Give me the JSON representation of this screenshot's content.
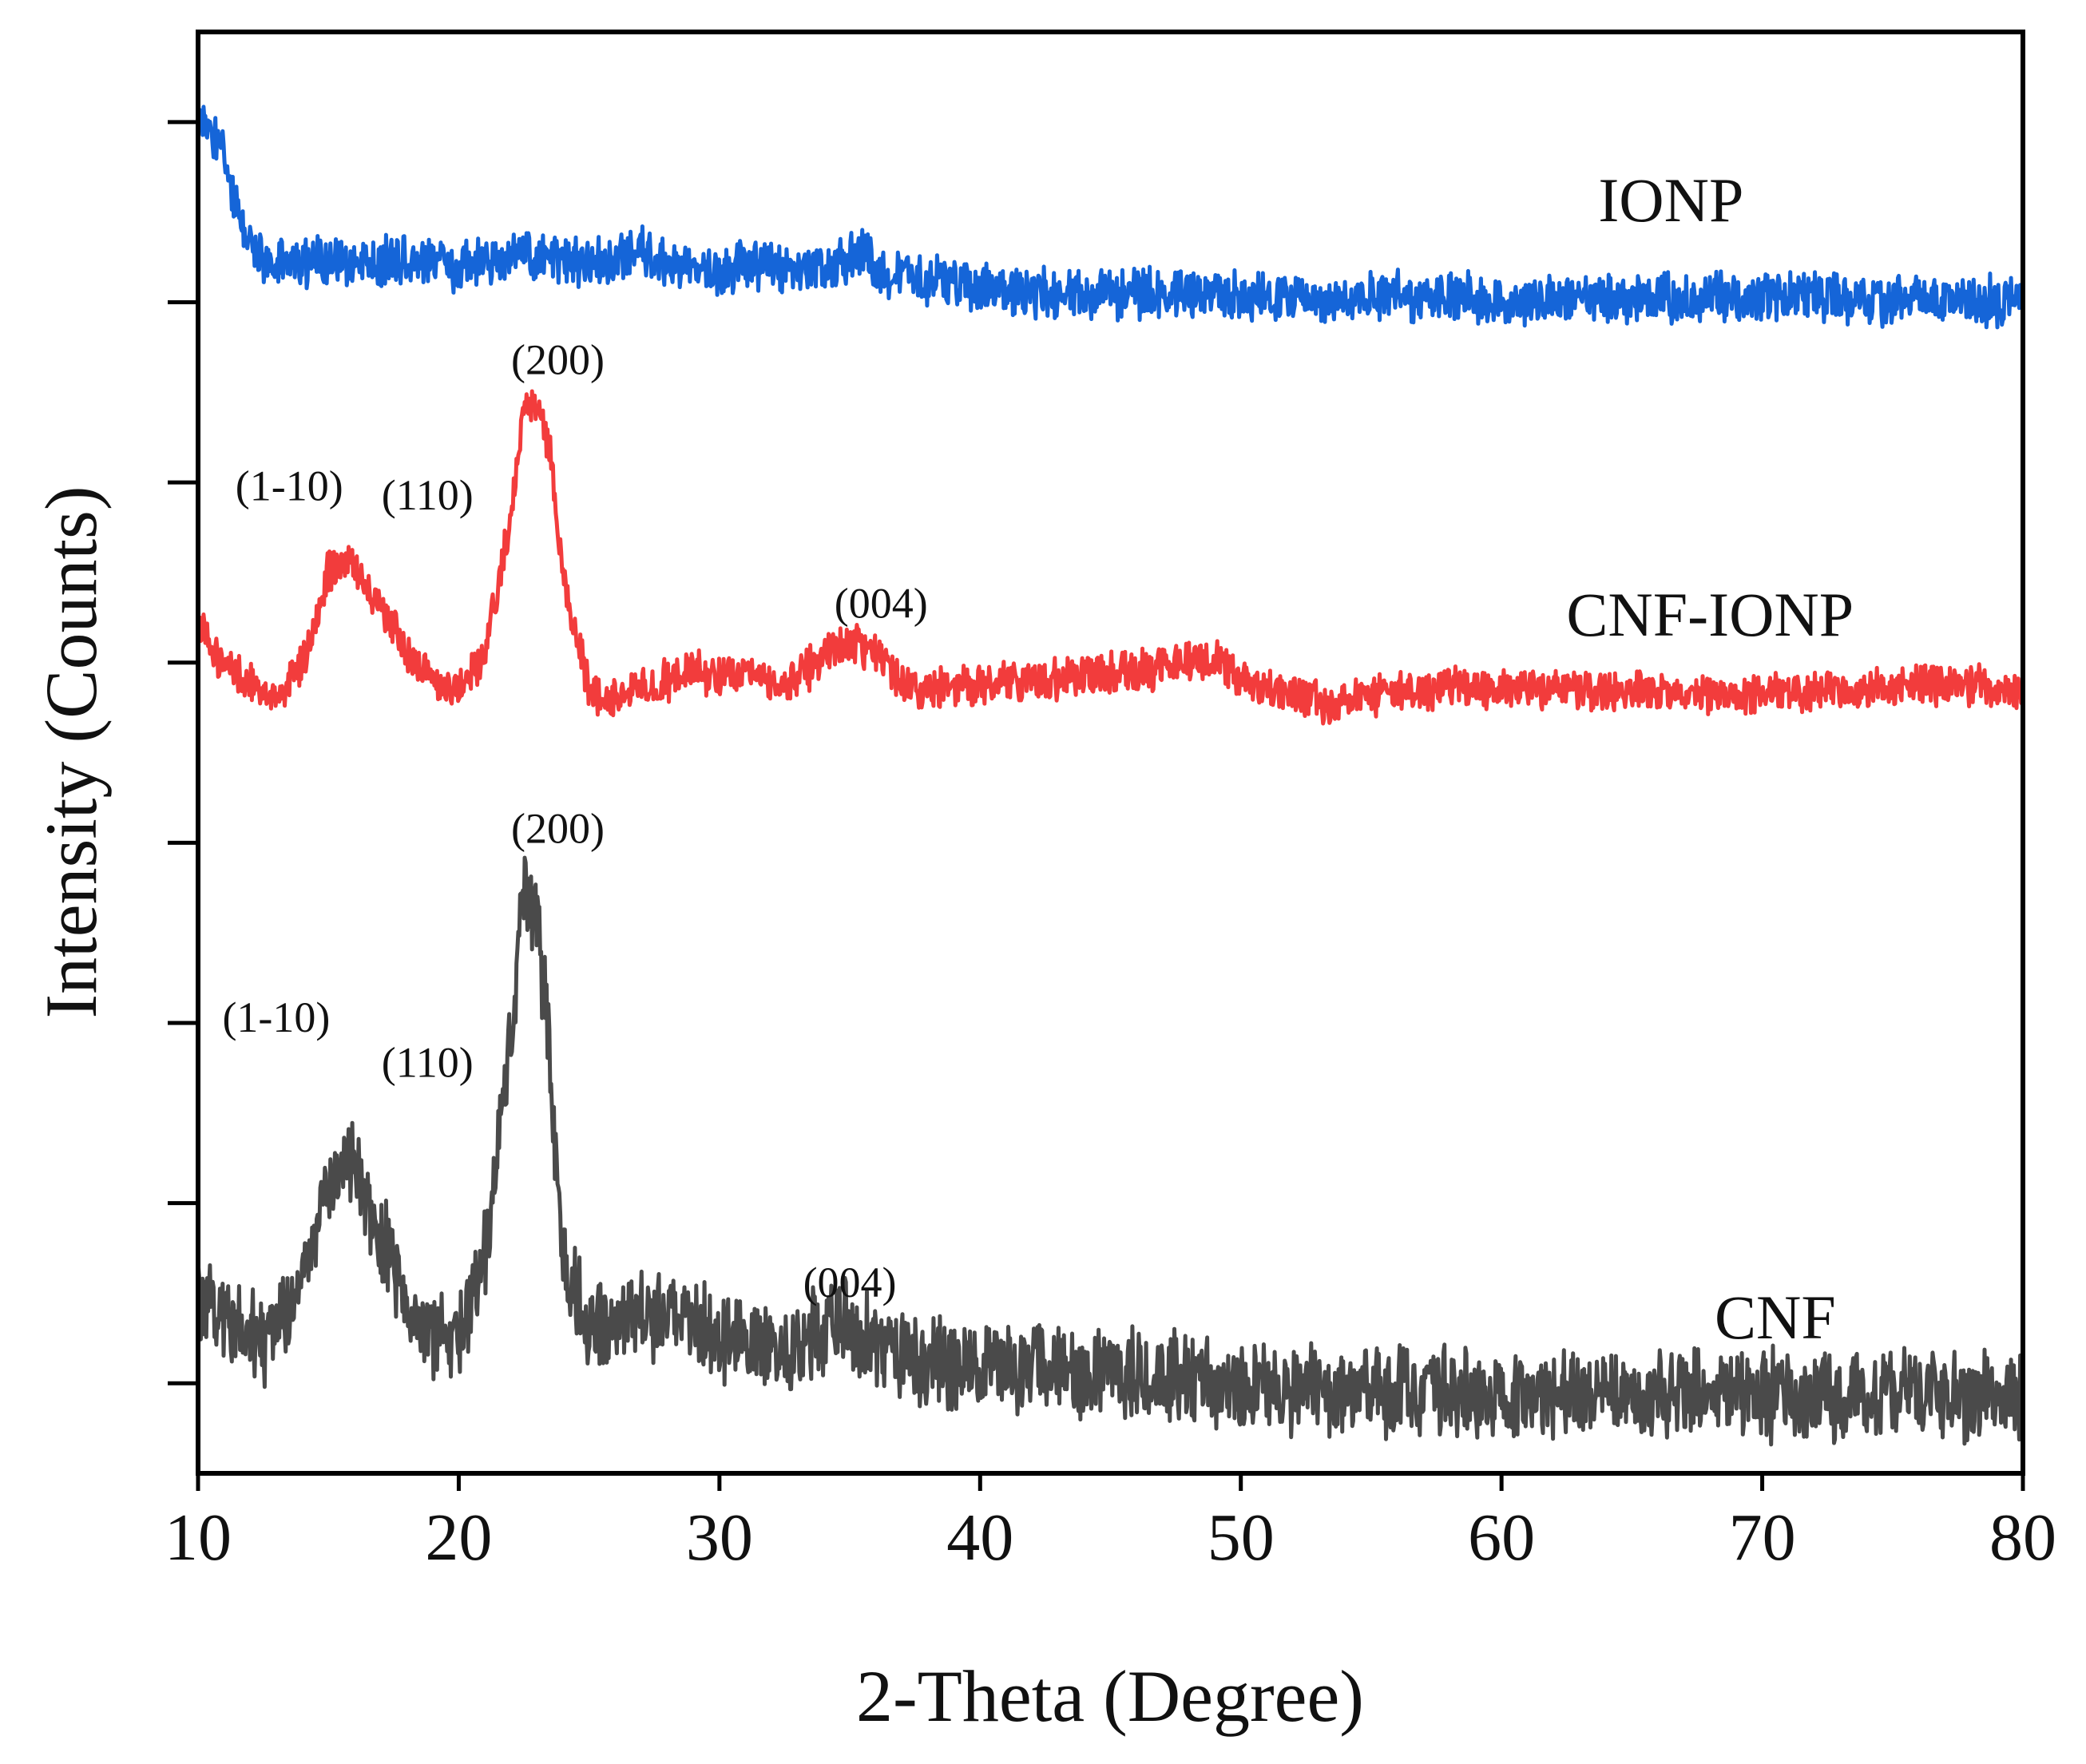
{
  "chart_data": {
    "type": "line",
    "title": "",
    "xlabel": "2-Theta (Degree)",
    "ylabel": "Intensity (Counts)",
    "xlim": [
      10,
      80
    ],
    "ylim": [
      0,
      8
    ],
    "x_ticks": [
      10,
      20,
      30,
      40,
      50,
      60,
      70,
      80
    ],
    "x_tick_labels": [
      "10",
      "20",
      "30",
      "40",
      "50",
      "60",
      "70",
      "80"
    ],
    "y_ticks": [
      0.5,
      1.5,
      2.5,
      3.5,
      4.5,
      5.5,
      6.5,
      7.5
    ],
    "y_tick_labels_shown": false,
    "grid": false,
    "legend": "none (series labelled directly)",
    "series": [
      {
        "name": "IONP",
        "color": "#1565d8",
        "noise": 0.12,
        "x": [
          10,
          10.5,
          11,
          11.5,
          12,
          12.5,
          13,
          14,
          15,
          16,
          17,
          18,
          19,
          20,
          21,
          22,
          22.6,
          23,
          24,
          25,
          26,
          27,
          28,
          29,
          30,
          31,
          32,
          33,
          34,
          35,
          35.3,
          36,
          37,
          38,
          40,
          42,
          44,
          46,
          48,
          50,
          52,
          54,
          56,
          58,
          60,
          62,
          64,
          66,
          68,
          70,
          72,
          74,
          76,
          78,
          80
        ],
        "y": [
          7.55,
          7.45,
          7.3,
          7.0,
          6.82,
          6.72,
          6.72,
          6.72,
          6.74,
          6.72,
          6.72,
          6.74,
          6.72,
          6.7,
          6.72,
          6.75,
          6.78,
          6.74,
          6.72,
          6.72,
          6.74,
          6.78,
          6.72,
          6.7,
          6.66,
          6.7,
          6.68,
          6.66,
          6.68,
          6.74,
          6.82,
          6.68,
          6.66,
          6.62,
          6.58,
          6.55,
          6.55,
          6.55,
          6.54,
          6.53,
          6.53,
          6.53,
          6.53,
          6.52,
          6.52,
          6.52,
          6.52,
          6.53,
          6.52,
          6.52,
          6.53,
          6.51,
          6.51,
          6.51,
          6.51
        ]
      },
      {
        "name": "CNF-IONP",
        "color": "#f23c3c",
        "noise": 0.1,
        "x": [
          10,
          11,
          12,
          13,
          14,
          15,
          15.5,
          16,
          17,
          18,
          19,
          20,
          21,
          22,
          22.5,
          23,
          23.5,
          24,
          25,
          26,
          27,
          28,
          29,
          30,
          31,
          32,
          33,
          34,
          35,
          36,
          37,
          38,
          40,
          42,
          44,
          46,
          48,
          49,
          50,
          51,
          52,
          53,
          53.5,
          55,
          56,
          58,
          60,
          62,
          64,
          66,
          68,
          70,
          72,
          74,
          76,
          78,
          80
        ],
        "y": [
          4.68,
          4.5,
          4.38,
          4.3,
          4.5,
          5.0,
          5.07,
          5.05,
          4.8,
          4.55,
          4.38,
          4.35,
          4.55,
          5.3,
          5.9,
          5.95,
          5.7,
          4.95,
          4.35,
          4.3,
          4.35,
          4.4,
          4.45,
          4.4,
          4.45,
          4.4,
          4.4,
          4.55,
          4.62,
          4.55,
          4.4,
          4.35,
          4.38,
          4.4,
          4.42,
          4.45,
          4.5,
          4.5,
          4.42,
          4.35,
          4.32,
          4.3,
          4.26,
          4.32,
          4.34,
          4.36,
          4.36,
          4.34,
          4.34,
          4.32,
          4.32,
          4.32,
          4.34,
          4.34,
          4.38,
          4.38,
          4.34
        ]
      },
      {
        "name": "CNF",
        "color": "#4a4a4a",
        "noise": 0.22,
        "x": [
          10,
          11,
          12,
          13,
          14,
          15,
          15.5,
          16,
          17,
          18,
          19,
          20,
          21,
          22,
          22.5,
          23,
          23.5,
          24,
          25,
          26,
          27,
          28,
          29,
          30,
          31,
          32,
          33,
          34,
          34.5,
          35,
          36,
          37,
          38,
          40,
          42,
          44,
          46,
          48,
          50,
          52,
          55,
          60,
          65,
          70,
          75,
          80
        ],
        "y": [
          1.0,
          0.85,
          0.75,
          0.75,
          1.05,
          1.6,
          1.75,
          1.72,
          1.35,
          0.9,
          0.72,
          0.78,
          1.2,
          2.5,
          3.2,
          3.1,
          2.3,
          1.25,
          0.8,
          0.82,
          0.85,
          0.86,
          0.82,
          0.75,
          0.72,
          0.7,
          0.7,
          0.8,
          0.85,
          0.8,
          0.7,
          0.66,
          0.62,
          0.6,
          0.58,
          0.56,
          0.55,
          0.52,
          0.48,
          0.46,
          0.46,
          0.44,
          0.44,
          0.44,
          0.43,
          0.43
        ]
      }
    ],
    "series_labels": [
      {
        "text": "IONP",
        "x": 66.5,
        "y": 6.95
      },
      {
        "text": "CNF-IONP",
        "x": 68,
        "y": 4.65
      },
      {
        "text": "CNF",
        "x": 70.5,
        "y": 0.75
      }
    ],
    "annotations": [
      {
        "text": "(200)",
        "x": 23.8,
        "y": 6.1
      },
      {
        "text": "(1-10)",
        "x": 13.5,
        "y": 5.4
      },
      {
        "text": "(110)",
        "x": 18.8,
        "y": 5.35
      },
      {
        "text": "(004)",
        "x": 36.2,
        "y": 4.75
      },
      {
        "text": "(200)",
        "x": 23.8,
        "y": 3.5
      },
      {
        "text": "(1-10)",
        "x": 13,
        "y": 2.45
      },
      {
        "text": "(110)",
        "x": 18.8,
        "y": 2.2
      },
      {
        "text": "(004)",
        "x": 35,
        "y": 0.98
      }
    ]
  }
}
